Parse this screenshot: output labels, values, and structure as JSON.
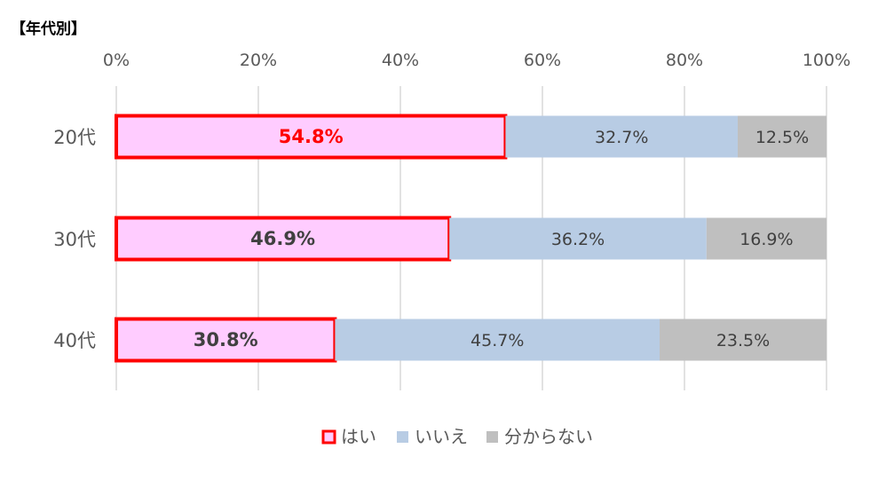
{
  "chart_data": {
    "type": "bar",
    "orientation": "horizontal",
    "stacked": "percent",
    "title": "【年代別】",
    "categories": [
      "20代",
      "30代",
      "40代"
    ],
    "series": [
      {
        "name": "はい",
        "values": [
          54.8,
          46.9,
          30.8
        ],
        "labels": [
          "54.8%",
          "46.9%",
          "30.8%"
        ],
        "color": "#ffccff",
        "border": "#ff0000"
      },
      {
        "name": "いいえ",
        "values": [
          32.7,
          36.2,
          45.7
        ],
        "labels": [
          "32.7%",
          "36.2%",
          "45.7%"
        ],
        "color": "#b8cce4"
      },
      {
        "name": "分からない",
        "values": [
          12.5,
          16.9,
          23.5
        ],
        "labels": [
          "12.5%",
          "16.9%",
          "23.5%"
        ],
        "color": "#bfbfbf"
      }
    ],
    "highlight_label_color": "#ff0000",
    "xlim": [
      0,
      100
    ],
    "x_ticks": [
      "0%",
      "20%",
      "40%",
      "60%",
      "80%",
      "100%"
    ],
    "x_axis_position": "top",
    "grid": true,
    "legend_position": "bottom"
  }
}
